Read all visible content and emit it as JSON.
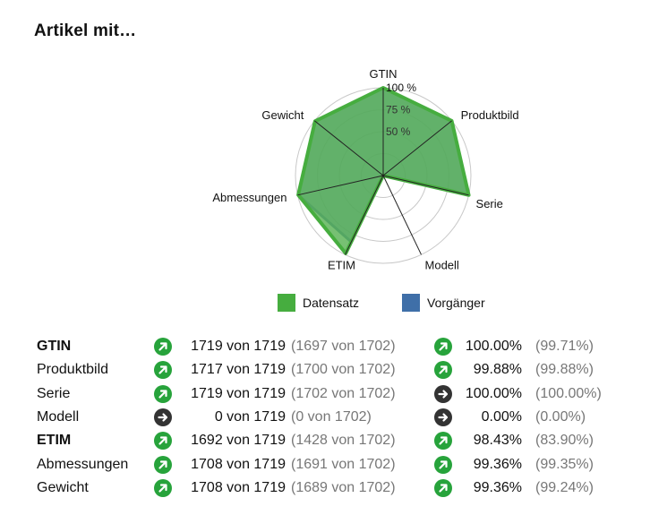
{
  "title": "Artikel mit…",
  "chart_data": {
    "type": "radar",
    "axes": [
      "GTIN",
      "Produktbild",
      "Serie",
      "Modell",
      "ETIM",
      "Abmessungen",
      "Gewicht"
    ],
    "series": [
      {
        "name": "Datensatz",
        "values": [
          100.0,
          99.88,
          100.0,
          0.0,
          98.43,
          99.36,
          99.36
        ],
        "color": "#46ad3f"
      },
      {
        "name": "Vorgänger",
        "values": [
          99.71,
          99.88,
          100.0,
          0.0,
          83.9,
          99.35,
          99.24
        ],
        "color": "#3f6fa8"
      }
    ],
    "ticks": [
      "50 %",
      "75 %",
      "100 %"
    ],
    "range": [
      0,
      100
    ],
    "legend_position": "bottom"
  },
  "legend": [
    {
      "label": "Datensatz",
      "color": "#46ad3f"
    },
    {
      "label": "Vorgänger",
      "color": "#3f6fa8"
    }
  ],
  "rows": [
    {
      "label": "GTIN",
      "bold": true,
      "icon": "arrow-up-right-icon",
      "count": "1719 von 1719",
      "prev_count": "(1697 von 1702)",
      "pct_icon": "arrow-up-right-icon",
      "pct": "100.00%",
      "prev_pct": "(99.71%)"
    },
    {
      "label": "Produktbild",
      "bold": false,
      "icon": "arrow-up-right-icon",
      "count": "1717 von 1719",
      "prev_count": "(1700 von 1702)",
      "pct_icon": "arrow-up-right-icon",
      "pct": "99.88%",
      "prev_pct": "(99.88%)"
    },
    {
      "label": "Serie",
      "bold": false,
      "icon": "arrow-up-right-icon",
      "count": "1719 von 1719",
      "prev_count": "(1702 von 1702)",
      "pct_icon": "arrow-right-icon",
      "pct": "100.00%",
      "prev_pct": "(100.00%)"
    },
    {
      "label": "Modell",
      "bold": false,
      "icon": "arrow-right-icon",
      "count": "0 von 1719",
      "prev_count": "(0 von 1702)",
      "pct_icon": "arrow-right-icon",
      "pct": "0.00%",
      "prev_pct": "(0.00%)"
    },
    {
      "label": "ETIM",
      "bold": true,
      "icon": "arrow-up-right-icon",
      "count": "1692 von 1719",
      "prev_count": "(1428 von 1702)",
      "pct_icon": "arrow-up-right-icon",
      "pct": "98.43%",
      "prev_pct": "(83.90%)"
    },
    {
      "label": "Abmessungen",
      "bold": false,
      "icon": "arrow-up-right-icon",
      "count": "1708 von 1719",
      "prev_count": "(1691 von 1702)",
      "pct_icon": "arrow-up-right-icon",
      "pct": "99.36%",
      "prev_pct": "(99.35%)"
    },
    {
      "label": "Gewicht",
      "bold": false,
      "icon": "arrow-up-right-icon",
      "count": "1708 von 1719",
      "prev_count": "(1689 von 1702)",
      "pct_icon": "arrow-up-right-icon",
      "pct": "99.36%",
      "prev_pct": "(99.24%)"
    }
  ]
}
